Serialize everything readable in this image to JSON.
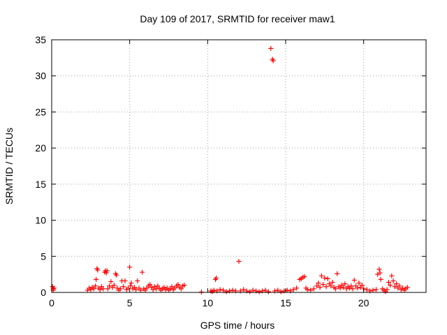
{
  "chart_data": {
    "type": "scatter",
    "title": "Day 109 of 2017, SRMTID for receiver maw1",
    "xlabel": "GPS time / hours",
    "ylabel": "SRMTID / TECUs",
    "xlim": [
      0,
      24
    ],
    "ylim": [
      0,
      35
    ],
    "xticks": [
      0,
      5,
      10,
      15,
      20
    ],
    "yticks": [
      0,
      5,
      10,
      15,
      20,
      25,
      30,
      35
    ],
    "grid": true,
    "marker": "+",
    "series": [
      {
        "name": "SRMTID",
        "color": "#ff0000",
        "points": [
          [
            0.05,
            0.8
          ],
          [
            0.1,
            0.5
          ],
          [
            0.15,
            0.6
          ],
          [
            0.1,
            0.3
          ],
          [
            2.3,
            0.3
          ],
          [
            2.4,
            0.6
          ],
          [
            2.5,
            0.4
          ],
          [
            2.6,
            0.7
          ],
          [
            2.7,
            0.5
          ],
          [
            2.8,
            0.9
          ],
          [
            2.85,
            1.8
          ],
          [
            2.9,
            3.3
          ],
          [
            2.95,
            3.1
          ],
          [
            3.0,
            0.6
          ],
          [
            3.1,
            0.4
          ],
          [
            3.2,
            0.8
          ],
          [
            3.3,
            0.5
          ],
          [
            3.4,
            2.8
          ],
          [
            3.45,
            3.0
          ],
          [
            3.5,
            2.7
          ],
          [
            3.55,
            3.0
          ],
          [
            3.6,
            0.5
          ],
          [
            3.7,
            0.9
          ],
          [
            3.8,
            1.5
          ],
          [
            3.9,
            0.7
          ],
          [
            4.0,
            1.0
          ],
          [
            4.1,
            2.6
          ],
          [
            4.15,
            2.4
          ],
          [
            4.2,
            0.6
          ],
          [
            4.3,
            0.3
          ],
          [
            4.4,
            0.5
          ],
          [
            4.5,
            1.6
          ],
          [
            4.6,
            0.8
          ],
          [
            4.7,
            1.6
          ],
          [
            4.8,
            0.4
          ],
          [
            4.9,
            0.6
          ],
          [
            5.0,
            3.5
          ],
          [
            5.05,
            0.9
          ],
          [
            5.1,
            1.3
          ],
          [
            5.2,
            0.5
          ],
          [
            5.3,
            0.7
          ],
          [
            5.4,
            0.4
          ],
          [
            5.5,
            1.6
          ],
          [
            5.6,
            0.6
          ],
          [
            5.7,
            0.3
          ],
          [
            5.8,
            2.8
          ],
          [
            5.9,
            0.5
          ],
          [
            6.0,
            0.3
          ],
          [
            6.1,
            0.6
          ],
          [
            6.2,
            0.9
          ],
          [
            6.3,
            1.1
          ],
          [
            6.4,
            0.7
          ],
          [
            6.5,
            0.4
          ],
          [
            6.6,
            0.8
          ],
          [
            6.7,
            0.5
          ],
          [
            6.8,
            0.9
          ],
          [
            6.9,
            0.6
          ],
          [
            7.0,
            0.3
          ],
          [
            7.1,
            0.5
          ],
          [
            7.2,
            0.7
          ],
          [
            7.3,
            0.4
          ],
          [
            7.4,
            0.6
          ],
          [
            7.5,
            0.3
          ],
          [
            7.6,
            0.5
          ],
          [
            7.7,
            0.8
          ],
          [
            7.8,
            0.4
          ],
          [
            7.9,
            0.6
          ],
          [
            8.0,
            0.9
          ],
          [
            8.1,
            1.1
          ],
          [
            8.2,
            0.7
          ],
          [
            8.3,
            0.5
          ],
          [
            8.4,
            0.9
          ],
          [
            8.5,
            1.0
          ],
          [
            9.6,
            0.05
          ],
          [
            10.2,
            0.2
          ],
          [
            10.3,
            0.1
          ],
          [
            10.4,
            0.3
          ],
          [
            10.5,
            1.8
          ],
          [
            10.55,
            2.0
          ],
          [
            10.6,
            0.2
          ],
          [
            10.8,
            0.4
          ],
          [
            11.0,
            0.3
          ],
          [
            11.2,
            0.1
          ],
          [
            11.4,
            0.2
          ],
          [
            11.6,
            0.3
          ],
          [
            11.8,
            0.2
          ],
          [
            12.0,
            4.3
          ],
          [
            12.1,
            0.2
          ],
          [
            12.3,
            0.4
          ],
          [
            12.5,
            0.2
          ],
          [
            12.7,
            0.1
          ],
          [
            12.9,
            0.3
          ],
          [
            13.1,
            0.2
          ],
          [
            13.3,
            0.1
          ],
          [
            13.5,
            0.2
          ],
          [
            13.7,
            0.3
          ],
          [
            13.9,
            0.1
          ],
          [
            14.05,
            33.8
          ],
          [
            14.15,
            32.3
          ],
          [
            14.2,
            32.1
          ],
          [
            14.3,
            0.2
          ],
          [
            14.5,
            0.3
          ],
          [
            14.7,
            0.1
          ],
          [
            14.9,
            0.2
          ],
          [
            15.1,
            0.3
          ],
          [
            15.3,
            0.2
          ],
          [
            15.5,
            0.4
          ],
          [
            15.7,
            0.6
          ],
          [
            15.9,
            1.8
          ],
          [
            16.0,
            1.9
          ],
          [
            16.1,
            2.1
          ],
          [
            16.2,
            2.2
          ],
          [
            16.3,
            0.6
          ],
          [
            16.4,
            0.4
          ],
          [
            16.6,
            0.3
          ],
          [
            16.8,
            0.5
          ],
          [
            17.0,
            0.9
          ],
          [
            17.1,
            1.3
          ],
          [
            17.2,
            0.7
          ],
          [
            17.3,
            2.3
          ],
          [
            17.4,
            1.1
          ],
          [
            17.5,
            2.0
          ],
          [
            17.6,
            0.8
          ],
          [
            17.7,
            1.9
          ],
          [
            17.8,
            1.2
          ],
          [
            17.9,
            0.9
          ],
          [
            18.0,
            1.4
          ],
          [
            18.1,
            0.7
          ],
          [
            18.2,
            0.5
          ],
          [
            18.3,
            2.6
          ],
          [
            18.4,
            0.8
          ],
          [
            18.5,
            0.6
          ],
          [
            18.6,
            1.0
          ],
          [
            18.7,
            0.7
          ],
          [
            18.8,
            1.2
          ],
          [
            18.9,
            0.5
          ],
          [
            19.0,
            0.8
          ],
          [
            19.1,
            0.6
          ],
          [
            19.2,
            0.9
          ],
          [
            19.3,
            0.5
          ],
          [
            19.4,
            1.7
          ],
          [
            19.5,
            0.9
          ],
          [
            19.6,
            0.6
          ],
          [
            19.7,
            1.3
          ],
          [
            19.8,
            0.7
          ],
          [
            19.9,
            1.0
          ],
          [
            20.0,
            0.5
          ],
          [
            20.2,
            0.4
          ],
          [
            20.4,
            0.2
          ],
          [
            20.6,
            0.3
          ],
          [
            20.8,
            0.4
          ],
          [
            20.9,
            2.5
          ],
          [
            21.0,
            3.2
          ],
          [
            21.05,
            2.7
          ],
          [
            21.1,
            1.8
          ],
          [
            21.2,
            0.5
          ],
          [
            21.3,
            0.3
          ],
          [
            21.4,
            0.1
          ],
          [
            21.5,
            0.4
          ],
          [
            21.6,
            1.4
          ],
          [
            21.7,
            1.0
          ],
          [
            21.8,
            2.3
          ],
          [
            21.9,
            1.6
          ],
          [
            22.0,
            0.8
          ],
          [
            22.1,
            1.2
          ],
          [
            22.2,
            0.6
          ],
          [
            22.3,
            0.9
          ],
          [
            22.4,
            0.4
          ],
          [
            22.5,
            0.6
          ],
          [
            22.6,
            0.3
          ],
          [
            22.7,
            0.5
          ],
          [
            22.8,
            0.7
          ]
        ]
      }
    ]
  }
}
